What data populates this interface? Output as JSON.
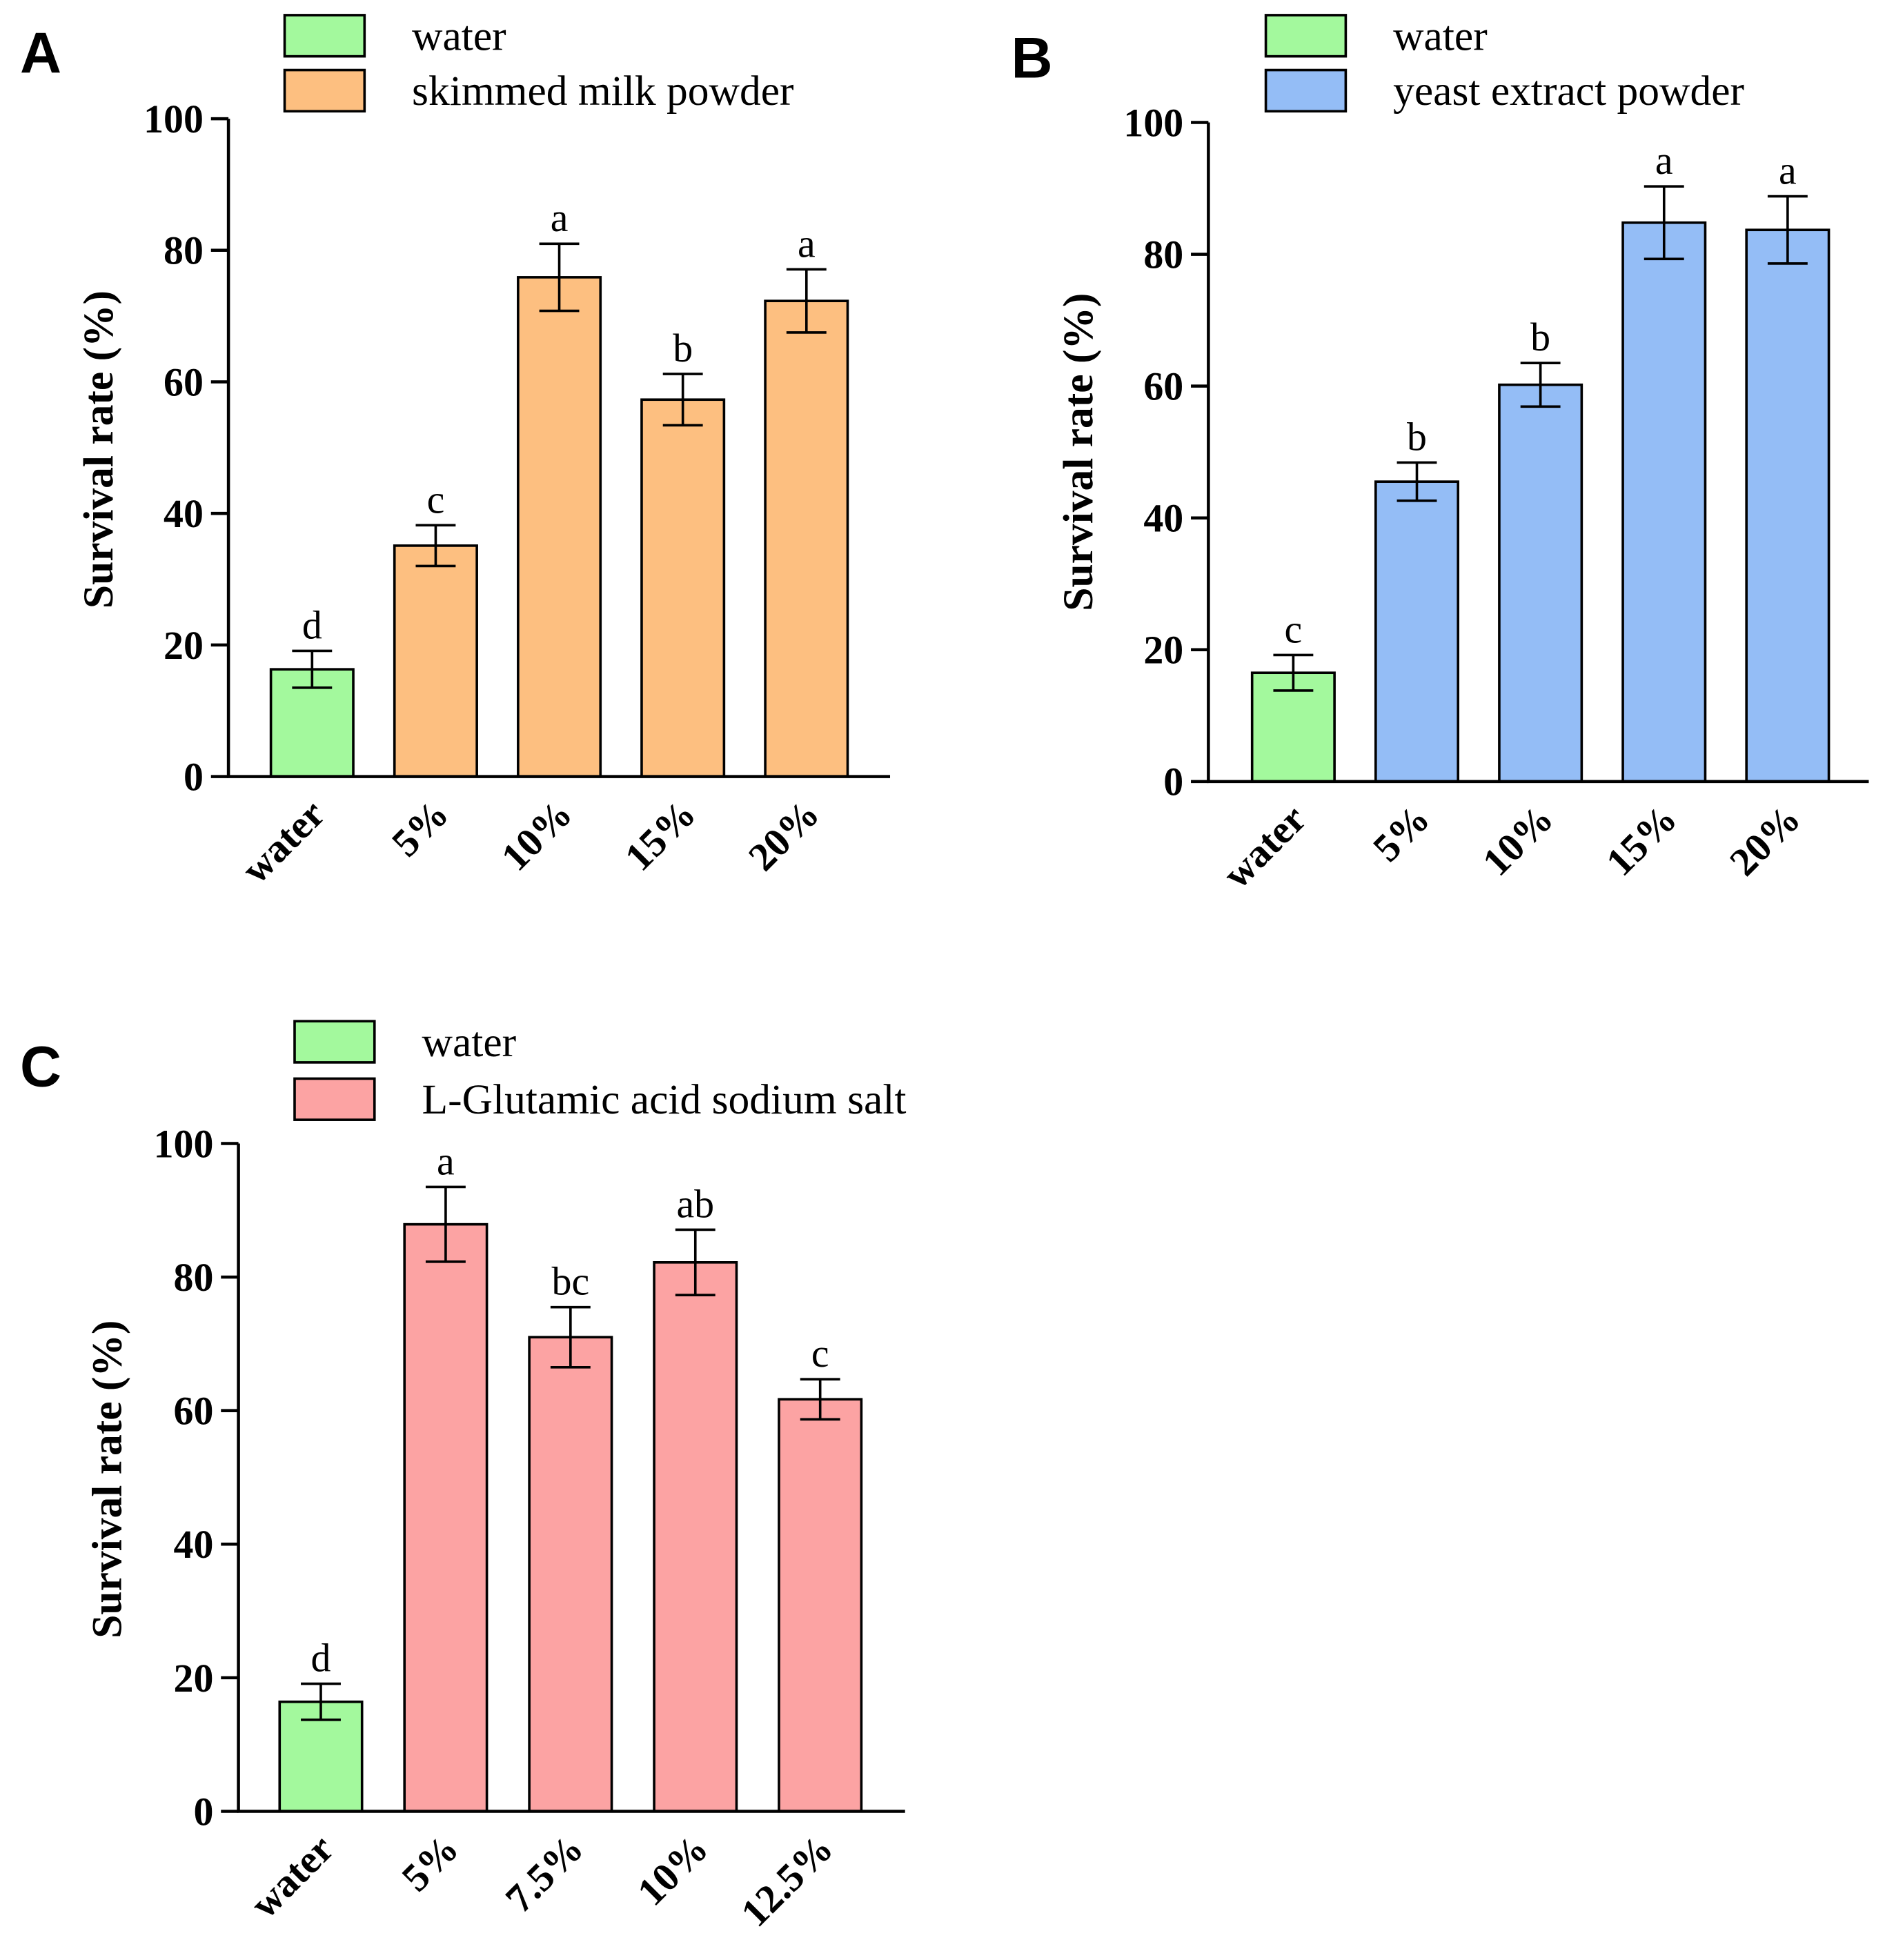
{
  "chart_data": [
    {
      "type": "bar",
      "panel_label": "A",
      "title": "",
      "xlabel": "",
      "ylabel": "Survival rate (%)",
      "ylim": [
        0,
        100
      ],
      "yticks": [
        0,
        20,
        40,
        60,
        80,
        100
      ],
      "categories": [
        "water",
        "5%",
        "10%",
        "15%",
        "20%"
      ],
      "values": [
        16.3,
        35.1,
        75.9,
        57.3,
        72.3
      ],
      "errors": [
        2.8,
        3.1,
        5.1,
        3.9,
        4.8
      ],
      "significance": [
        "d",
        "c",
        "a",
        "b",
        "a"
      ],
      "bar_series": [
        0,
        1,
        1,
        1,
        1
      ],
      "legend": [
        {
          "label": "water",
          "color": "#a3f99d"
        },
        {
          "label": "skimmed milk powder",
          "color": "#fdbf80"
        }
      ],
      "legend_position": "top"
    },
    {
      "type": "bar",
      "panel_label": "B",
      "title": "",
      "xlabel": "",
      "ylabel": "Survival rate (%)",
      "ylim": [
        0,
        100
      ],
      "yticks": [
        0,
        20,
        40,
        60,
        80,
        100
      ],
      "categories": [
        "water",
        "5%",
        "10%",
        "15%",
        "20%"
      ],
      "values": [
        16.5,
        45.5,
        60.2,
        84.8,
        83.7
      ],
      "errors": [
        2.7,
        2.9,
        3.3,
        5.5,
        5.1
      ],
      "significance": [
        "c",
        "b",
        "b",
        "a",
        "a"
      ],
      "bar_series": [
        0,
        1,
        1,
        1,
        1
      ],
      "legend": [
        {
          "label": "water",
          "color": "#a3f99d"
        },
        {
          "label": "yeast extract powder",
          "color": "#94bdf6"
        }
      ],
      "legend_position": "top"
    },
    {
      "type": "bar",
      "panel_label": "C",
      "title": "",
      "xlabel": "",
      "ylabel": "Survival rate (%)",
      "ylim": [
        0,
        100
      ],
      "yticks": [
        0,
        20,
        40,
        60,
        80,
        100
      ],
      "categories": [
        "water",
        "5%",
        "7.5%",
        "10%",
        "12.5%"
      ],
      "values": [
        16.4,
        87.9,
        71.0,
        82.2,
        61.7
      ],
      "errors": [
        2.7,
        5.6,
        4.5,
        4.9,
        3.0
      ],
      "significance": [
        "d",
        "a",
        "bc",
        "ab",
        "c"
      ],
      "bar_series": [
        0,
        1,
        1,
        1,
        1
      ],
      "legend": [
        {
          "label": "water",
          "color": "#a3f99d"
        },
        {
          "label": "L-Glutamic acid sodium salt",
          "color": "#fca3a3"
        }
      ],
      "legend_position": "top"
    }
  ]
}
